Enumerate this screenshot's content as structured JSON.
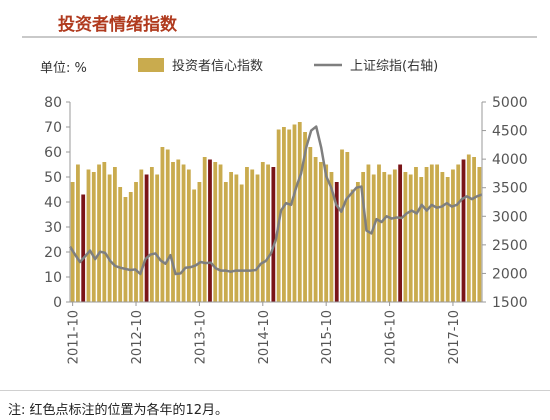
{
  "page": {
    "title": "投资者情绪指数",
    "unit_label": "单位: %",
    "footnote": "注: 红色点标注的位置为各年的12月。"
  },
  "colors": {
    "bar": "#c9ab4e",
    "december_bar": "#7a1418",
    "line": "#7f7f7f",
    "title": "#b03a1e"
  },
  "chart_data": {
    "type": "bar",
    "title": "",
    "legend": {
      "placement": "top",
      "entries": [
        "投资者信心指数",
        "上证综指(右轴)"
      ]
    },
    "x_tick_labels": [
      "2011-10",
      "2012-10",
      "2013-10",
      "2014-10",
      "2015-10",
      "2016-10",
      "2017-10"
    ],
    "y_left": {
      "label": "单位: %",
      "ylim": [
        0,
        80
      ],
      "ticks": [
        0,
        10,
        20,
        30,
        40,
        50,
        60,
        70,
        80
      ]
    },
    "y_right": {
      "label": "",
      "ylim": [
        1500,
        5000
      ],
      "ticks": [
        1500,
        2000,
        2500,
        3000,
        3500,
        4000,
        4500,
        5000
      ]
    },
    "grid": false,
    "series": [
      {
        "name": "投资者信心指数",
        "type": "bar",
        "axis": "left",
        "start_month": "2011-10",
        "december_marked": true,
        "values": [
          48,
          55,
          43,
          53,
          52,
          55,
          56,
          51,
          54,
          46,
          42,
          44,
          48,
          53,
          51,
          54,
          51,
          62,
          61,
          56,
          57,
          55,
          53,
          45,
          48,
          58,
          57,
          56,
          55,
          48,
          52,
          51,
          47,
          54,
          53,
          51,
          56,
          55,
          54,
          69,
          70,
          69,
          71,
          72,
          68,
          62,
          58,
          56,
          55,
          52,
          48,
          61,
          60,
          45,
          48,
          52,
          55,
          51,
          55,
          52,
          51,
          53,
          55,
          52,
          51,
          54,
          50,
          54,
          55,
          55,
          52,
          50,
          53,
          55,
          57,
          59,
          58,
          54
        ]
      },
      {
        "name": "上证综指(右轴)",
        "type": "line",
        "axis": "right",
        "start_month": "2011-10",
        "values": [
          2470,
          2330,
          2200,
          2300,
          2400,
          2250,
          2380,
          2360,
          2220,
          2130,
          2100,
          2080,
          2060,
          2070,
          1990,
          2250,
          2330,
          2350,
          2230,
          2170,
          2320,
          1990,
          2000,
          2100,
          2110,
          2140,
          2200,
          2180,
          2190,
          2090,
          2050,
          2050,
          2030,
          2050,
          2050,
          2050,
          2050,
          2060,
          2170,
          2220,
          2350,
          2600,
          3100,
          3230,
          3200,
          3500,
          3750,
          4200,
          4500,
          4570,
          4200,
          3700,
          3500,
          3200,
          3080,
          3300,
          3400,
          3500,
          3520,
          2750,
          2700,
          2950,
          2900,
          3000,
          2960,
          2980,
          2970,
          3050,
          3100,
          3050,
          3200,
          3100,
          3200,
          3150,
          3170,
          3230,
          3170,
          3200,
          3300,
          3350,
          3300,
          3350,
          3380
        ]
      }
    ]
  }
}
